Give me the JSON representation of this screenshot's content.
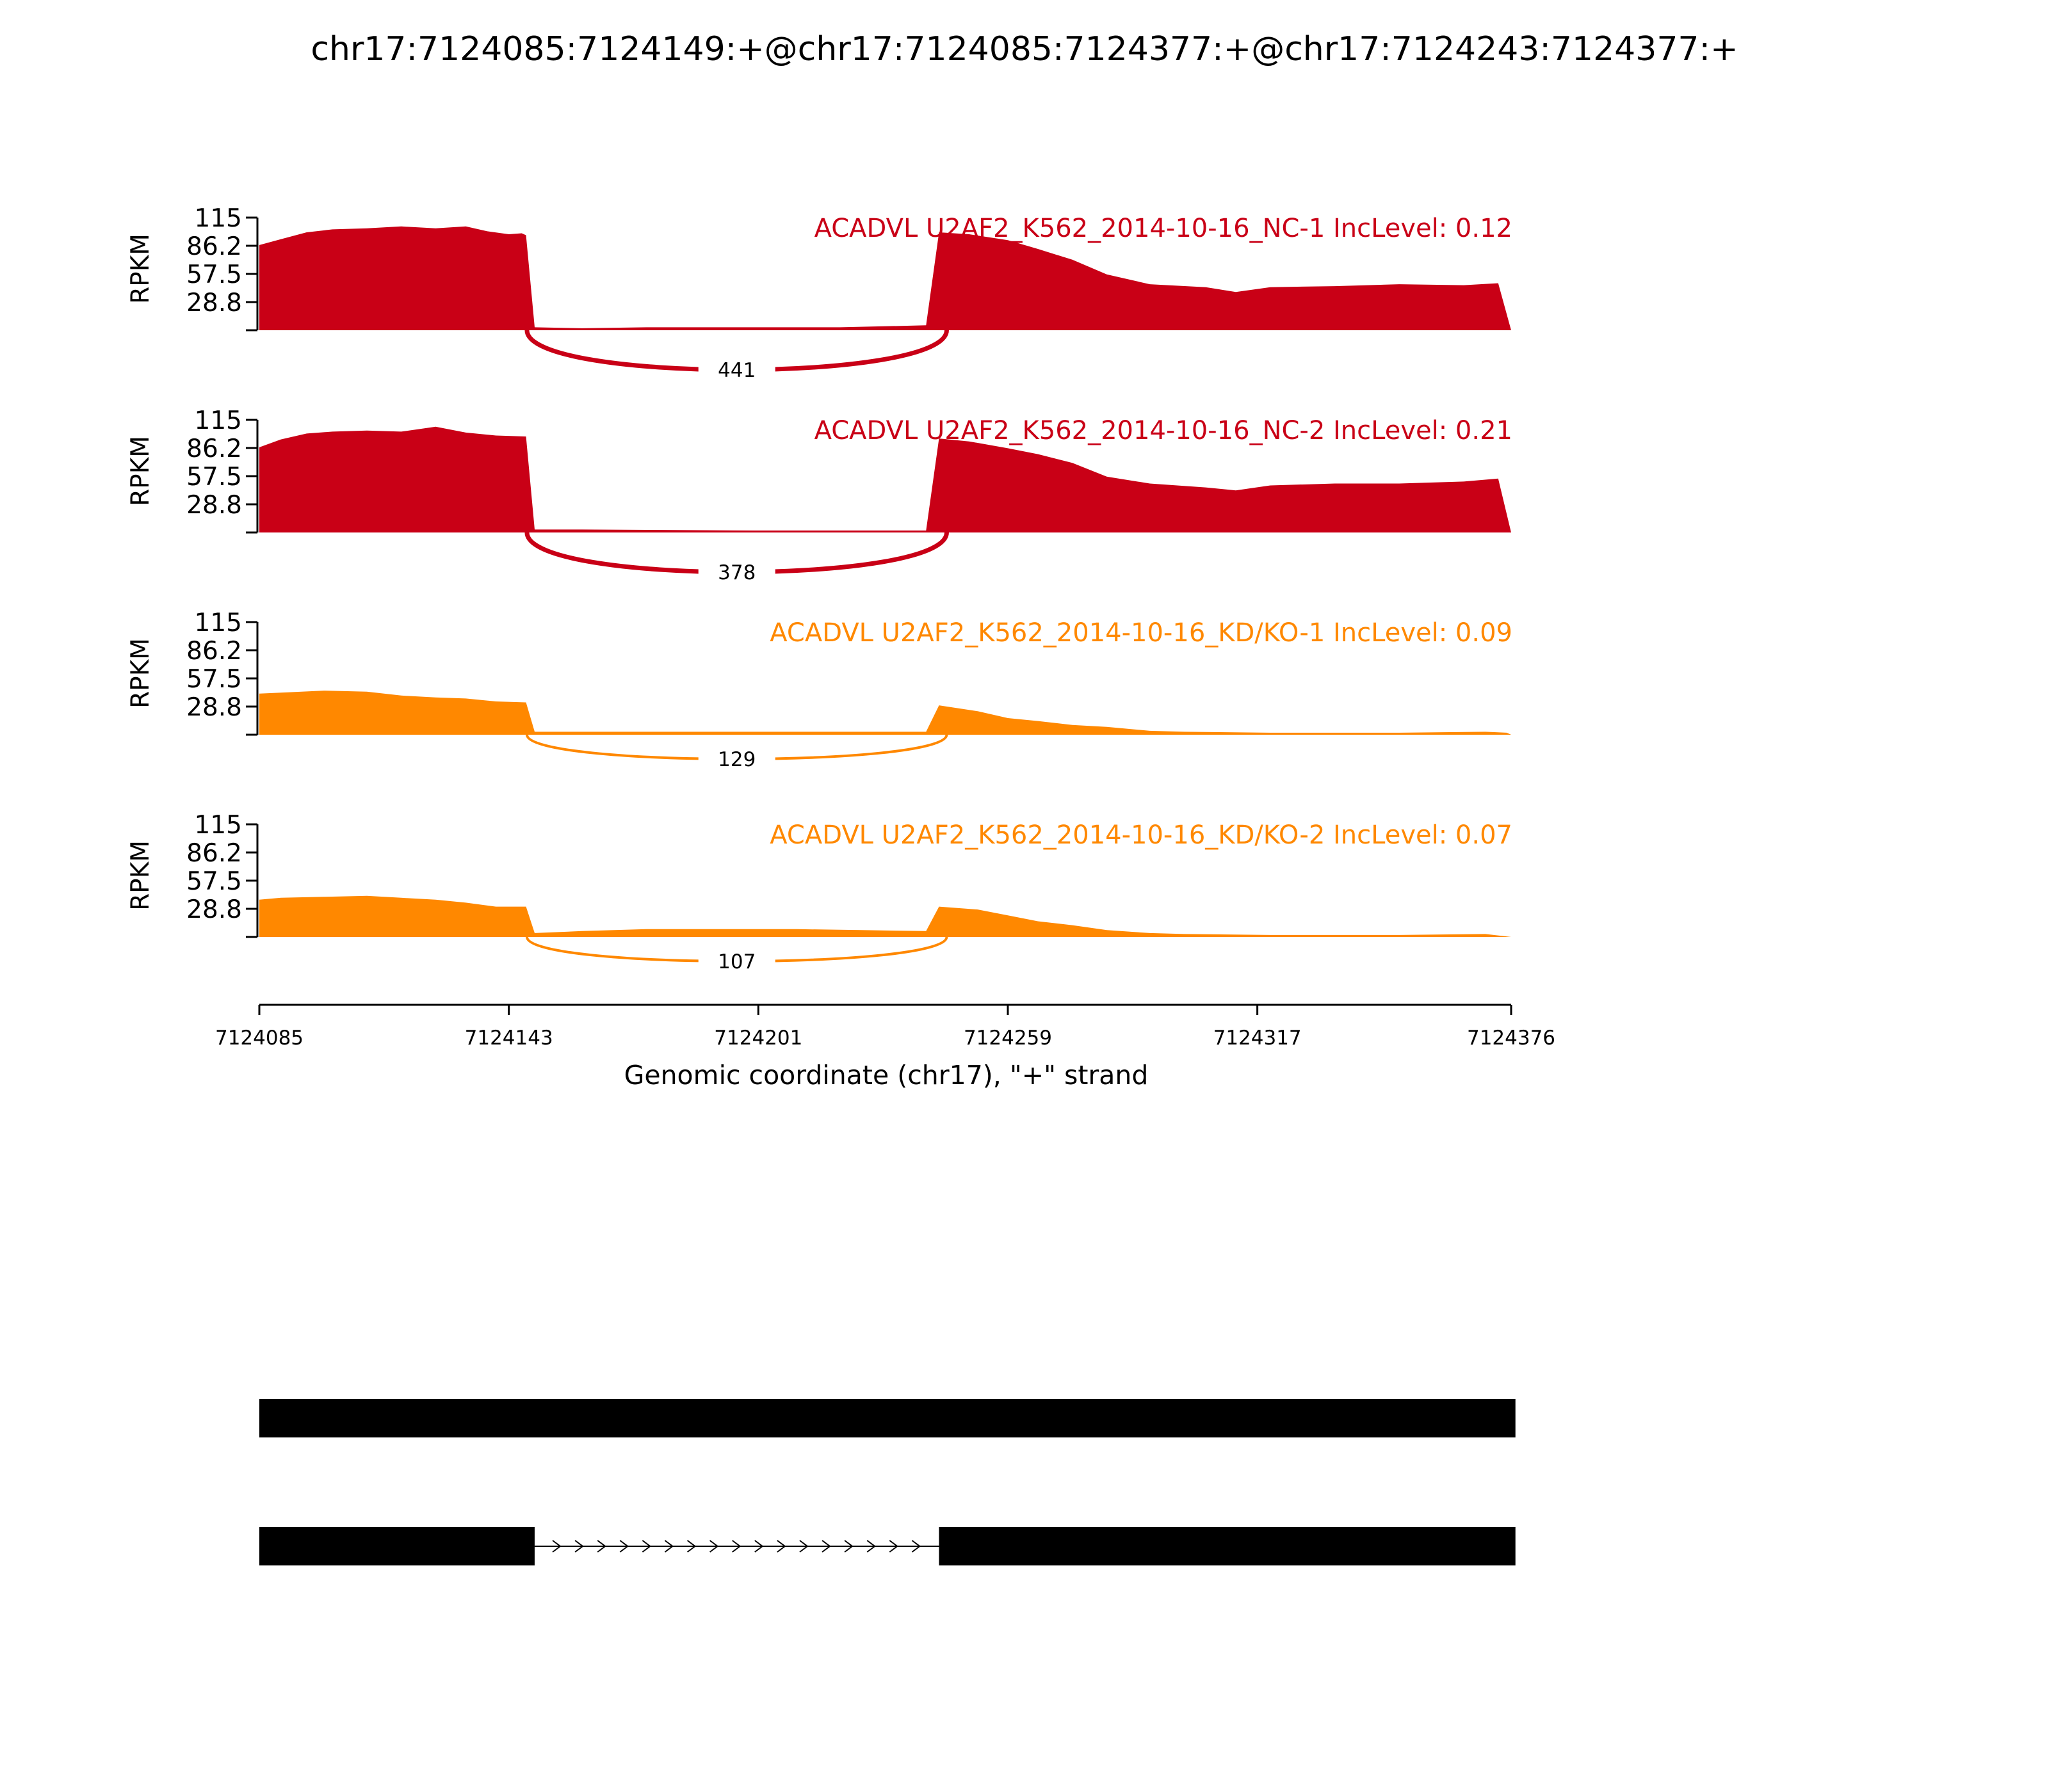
{
  "chart_data": {
    "type": "area",
    "title": "chr17:7124085:7124149:+@chr17:7124085:7124377:+@chr17:7124243:7124377:+",
    "xlabel": "Genomic coordinate (chr17), \"+\" strand",
    "ylabel": "RPKM",
    "xlim": [
      7124085,
      7124376
    ],
    "x_ticks": [
      "7124085",
      "7124143",
      "7124201",
      "7124259",
      "7124317",
      "7124376"
    ],
    "ylim": [
      0,
      115
    ],
    "y_ticks": [
      "115",
      "86.2",
      "57.5",
      "28.8"
    ],
    "colors": {
      "nc": "#c90016",
      "kd": "#ff8800"
    },
    "series": [
      {
        "name": "ACADVL U2AF2_K562_2014-10-16_NC-1 IncLevel: 0.12",
        "group": "nc",
        "junction": {
          "count": "441",
          "from": 7124149,
          "to": 7124243
        },
        "points": [
          [
            7124085,
            87
          ],
          [
            7124090,
            93
          ],
          [
            7124096,
            100
          ],
          [
            7124102,
            103
          ],
          [
            7124110,
            104
          ],
          [
            7124118,
            106
          ],
          [
            7124126,
            104
          ],
          [
            7124133,
            106
          ],
          [
            7124138,
            101
          ],
          [
            7124143,
            98
          ],
          [
            7124146,
            99
          ],
          [
            7124147,
            97
          ],
          [
            7124149,
            3
          ],
          [
            7124160,
            2
          ],
          [
            7124175,
            3
          ],
          [
            7124200,
            3
          ],
          [
            7124220,
            3
          ],
          [
            7124240,
            5
          ],
          [
            7124243,
            100
          ],
          [
            7124250,
            98
          ],
          [
            7124259,
            92
          ],
          [
            7124266,
            83
          ],
          [
            7124274,
            72
          ],
          [
            7124282,
            57
          ],
          [
            7124292,
            47
          ],
          [
            7124305,
            44
          ],
          [
            7124312,
            39
          ],
          [
            7124320,
            44
          ],
          [
            7124335,
            45
          ],
          [
            7124350,
            47
          ],
          [
            7124365,
            46
          ],
          [
            7124373,
            48
          ],
          [
            7124376,
            0
          ]
        ]
      },
      {
        "name": "ACADVL U2AF2_K562_2014-10-16_NC-2 IncLevel: 0.21",
        "group": "nc",
        "junction": {
          "count": "378",
          "from": 7124149,
          "to": 7124243
        },
        "points": [
          [
            7124085,
            87
          ],
          [
            7124090,
            95
          ],
          [
            7124096,
            101
          ],
          [
            7124102,
            103
          ],
          [
            7124110,
            104
          ],
          [
            7124118,
            103
          ],
          [
            7124126,
            108
          ],
          [
            7124133,
            102
          ],
          [
            7124140,
            99
          ],
          [
            7124147,
            98
          ],
          [
            7124149,
            3
          ],
          [
            7124160,
            3
          ],
          [
            7124200,
            2
          ],
          [
            7124240,
            2
          ],
          [
            7124243,
            96
          ],
          [
            7124250,
            93
          ],
          [
            7124259,
            86
          ],
          [
            7124266,
            80
          ],
          [
            7124274,
            71
          ],
          [
            7124282,
            57
          ],
          [
            7124292,
            50
          ],
          [
            7124305,
            46
          ],
          [
            7124312,
            43
          ],
          [
            7124320,
            48
          ],
          [
            7124335,
            50
          ],
          [
            7124350,
            50
          ],
          [
            7124365,
            52
          ],
          [
            7124373,
            55
          ],
          [
            7124376,
            0
          ]
        ]
      },
      {
        "name": "ACADVL U2AF2_K562_2014-10-16_KD/KO-1 IncLevel: 0.09",
        "group": "kd",
        "junction": {
          "count": "129",
          "from": 7124149,
          "to": 7124243
        },
        "points": [
          [
            7124085,
            42
          ],
          [
            7124090,
            43
          ],
          [
            7124100,
            45
          ],
          [
            7124110,
            44
          ],
          [
            7124118,
            40
          ],
          [
            7124126,
            38
          ],
          [
            7124133,
            37
          ],
          [
            7124140,
            34
          ],
          [
            7124147,
            33
          ],
          [
            7124149,
            3
          ],
          [
            7124175,
            3
          ],
          [
            7124210,
            3
          ],
          [
            7124240,
            3
          ],
          [
            7124243,
            30
          ],
          [
            7124252,
            24
          ],
          [
            7124259,
            17
          ],
          [
            7124266,
            14
          ],
          [
            7124274,
            10
          ],
          [
            7124282,
            8
          ],
          [
            7124292,
            4
          ],
          [
            7124300,
            3
          ],
          [
            7124320,
            2
          ],
          [
            7124350,
            2
          ],
          [
            7124370,
            3
          ],
          [
            7124375,
            2
          ],
          [
            7124376,
            0
          ]
        ]
      },
      {
        "name": "ACADVL U2AF2_K562_2014-10-16_KD/KO-2 IncLevel: 0.07",
        "group": "kd",
        "junction": {
          "count": "107",
          "from": 7124149,
          "to": 7124243
        },
        "points": [
          [
            7124085,
            38
          ],
          [
            7124090,
            40
          ],
          [
            7124100,
            41
          ],
          [
            7124110,
            42
          ],
          [
            7124118,
            40
          ],
          [
            7124126,
            38
          ],
          [
            7124133,
            35
          ],
          [
            7124140,
            31
          ],
          [
            7124147,
            31
          ],
          [
            7124149,
            4
          ],
          [
            7124160,
            6
          ],
          [
            7124175,
            8
          ],
          [
            7124210,
            8
          ],
          [
            7124225,
            7
          ],
          [
            7124240,
            6
          ],
          [
            7124243,
            31
          ],
          [
            7124252,
            28
          ],
          [
            7124259,
            22
          ],
          [
            7124266,
            16
          ],
          [
            7124274,
            12
          ],
          [
            7124282,
            7
          ],
          [
            7124292,
            4
          ],
          [
            7124300,
            3
          ],
          [
            7124320,
            2
          ],
          [
            7124350,
            2
          ],
          [
            7124370,
            3
          ],
          [
            7124376,
            0
          ]
        ]
      }
    ],
    "isoforms": [
      {
        "exons": [
          [
            7124085,
            7124377
          ]
        ]
      },
      {
        "exons": [
          [
            7124085,
            7124149
          ],
          [
            7124243,
            7124377
          ]
        ],
        "strand": "+"
      }
    ]
  }
}
